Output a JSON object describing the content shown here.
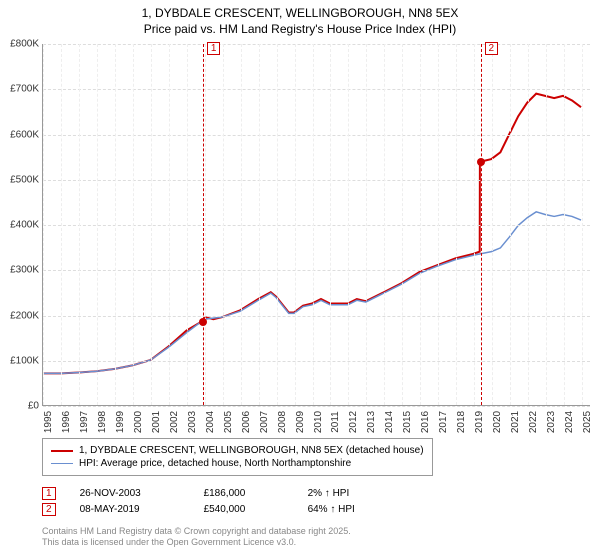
{
  "title_line1": "1, DYBDALE CRESCENT, WELLINGBOROUGH, NN8 5EX",
  "title_line2": "Price paid vs. HM Land Registry's House Price Index (HPI)",
  "chart": {
    "type": "line",
    "background_color": "#ffffff",
    "grid_color": "#dddddd",
    "axis_color": "#999999",
    "ylim": [
      0,
      800000
    ],
    "ytick_step": 100000,
    "yticks": [
      "£0",
      "£100K",
      "£200K",
      "£300K",
      "£400K",
      "£500K",
      "£600K",
      "£700K",
      "£800K"
    ],
    "xrange": [
      1995,
      2025.5
    ],
    "xticks": [
      1995,
      1996,
      1997,
      1998,
      1999,
      2000,
      2001,
      2002,
      2003,
      2004,
      2005,
      2006,
      2007,
      2008,
      2009,
      2010,
      2011,
      2012,
      2013,
      2014,
      2015,
      2016,
      2017,
      2018,
      2019,
      2020,
      2021,
      2022,
      2023,
      2024,
      2025
    ],
    "series": [
      {
        "name": "price_paid",
        "color": "#cc0000",
        "line_width": 2,
        "points": [
          [
            1995,
            70000
          ],
          [
            1996,
            70000
          ],
          [
            1997,
            72000
          ],
          [
            1998,
            75000
          ],
          [
            1999,
            80000
          ],
          [
            2000,
            88000
          ],
          [
            2001,
            100000
          ],
          [
            2002,
            130000
          ],
          [
            2003,
            165000
          ],
          [
            2003.9,
            186000
          ],
          [
            2004,
            195000
          ],
          [
            2004.5,
            190000
          ],
          [
            2005,
            195000
          ],
          [
            2006,
            210000
          ],
          [
            2007,
            235000
          ],
          [
            2007.7,
            250000
          ],
          [
            2008,
            240000
          ],
          [
            2008.7,
            205000
          ],
          [
            2009,
            205000
          ],
          [
            2009.5,
            220000
          ],
          [
            2010,
            225000
          ],
          [
            2010.5,
            235000
          ],
          [
            2011,
            225000
          ],
          [
            2012,
            225000
          ],
          [
            2012.5,
            235000
          ],
          [
            2013,
            230000
          ],
          [
            2014,
            250000
          ],
          [
            2015,
            270000
          ],
          [
            2016,
            295000
          ],
          [
            2017,
            310000
          ],
          [
            2018,
            325000
          ],
          [
            2019,
            335000
          ],
          [
            2019.35,
            340000
          ],
          [
            2019.36,
            540000
          ],
          [
            2019.5,
            540000
          ],
          [
            2020,
            545000
          ],
          [
            2020.5,
            560000
          ],
          [
            2021,
            600000
          ],
          [
            2021.5,
            640000
          ],
          [
            2022,
            670000
          ],
          [
            2022.5,
            690000
          ],
          [
            2023,
            685000
          ],
          [
            2023.5,
            680000
          ],
          [
            2024,
            685000
          ],
          [
            2024.5,
            675000
          ],
          [
            2025,
            660000
          ]
        ]
      },
      {
        "name": "hpi",
        "color": "#6a8fd0",
        "line_width": 1.5,
        "points": [
          [
            1995,
            70000
          ],
          [
            1996,
            70000
          ],
          [
            1997,
            72000
          ],
          [
            1998,
            75000
          ],
          [
            1999,
            80000
          ],
          [
            2000,
            88000
          ],
          [
            2001,
            100000
          ],
          [
            2002,
            128000
          ],
          [
            2003,
            160000
          ],
          [
            2004,
            190000
          ],
          [
            2005,
            195000
          ],
          [
            2006,
            208000
          ],
          [
            2007,
            232000
          ],
          [
            2007.7,
            248000
          ],
          [
            2008,
            238000
          ],
          [
            2008.7,
            203000
          ],
          [
            2009,
            203000
          ],
          [
            2009.5,
            218000
          ],
          [
            2010,
            222000
          ],
          [
            2010.5,
            232000
          ],
          [
            2011,
            222000
          ],
          [
            2012,
            222000
          ],
          [
            2012.5,
            232000
          ],
          [
            2013,
            228000
          ],
          [
            2014,
            248000
          ],
          [
            2015,
            268000
          ],
          [
            2016,
            292000
          ],
          [
            2017,
            308000
          ],
          [
            2018,
            322000
          ],
          [
            2019,
            332000
          ],
          [
            2020,
            340000
          ],
          [
            2020.5,
            348000
          ],
          [
            2021,
            372000
          ],
          [
            2021.5,
            398000
          ],
          [
            2022,
            415000
          ],
          [
            2022.5,
            428000
          ],
          [
            2023,
            422000
          ],
          [
            2023.5,
            418000
          ],
          [
            2024,
            422000
          ],
          [
            2024.5,
            418000
          ],
          [
            2025,
            410000
          ]
        ]
      }
    ],
    "markers": [
      {
        "num": "1",
        "x": 2003.9,
        "y": 186000,
        "color": "#cc0000"
      },
      {
        "num": "2",
        "x": 2019.35,
        "y": 540000,
        "color": "#cc0000"
      }
    ]
  },
  "legend": {
    "items": [
      {
        "color": "#cc0000",
        "width": 2,
        "label": "1, DYBDALE CRESCENT, WELLINGBOROUGH, NN8 5EX (detached house)"
      },
      {
        "color": "#6a8fd0",
        "width": 1.5,
        "label": "HPI: Average price, detached house, North Northamptonshire"
      }
    ]
  },
  "events": [
    {
      "num": "1",
      "date": "26-NOV-2003",
      "price": "£186,000",
      "delta": "2% ↑ HPI"
    },
    {
      "num": "2",
      "date": "08-MAY-2019",
      "price": "£540,000",
      "delta": "64% ↑ HPI"
    }
  ],
  "footer_line1": "Contains HM Land Registry data © Crown copyright and database right 2025.",
  "footer_line2": "This data is licensed under the Open Government Licence v3.0."
}
